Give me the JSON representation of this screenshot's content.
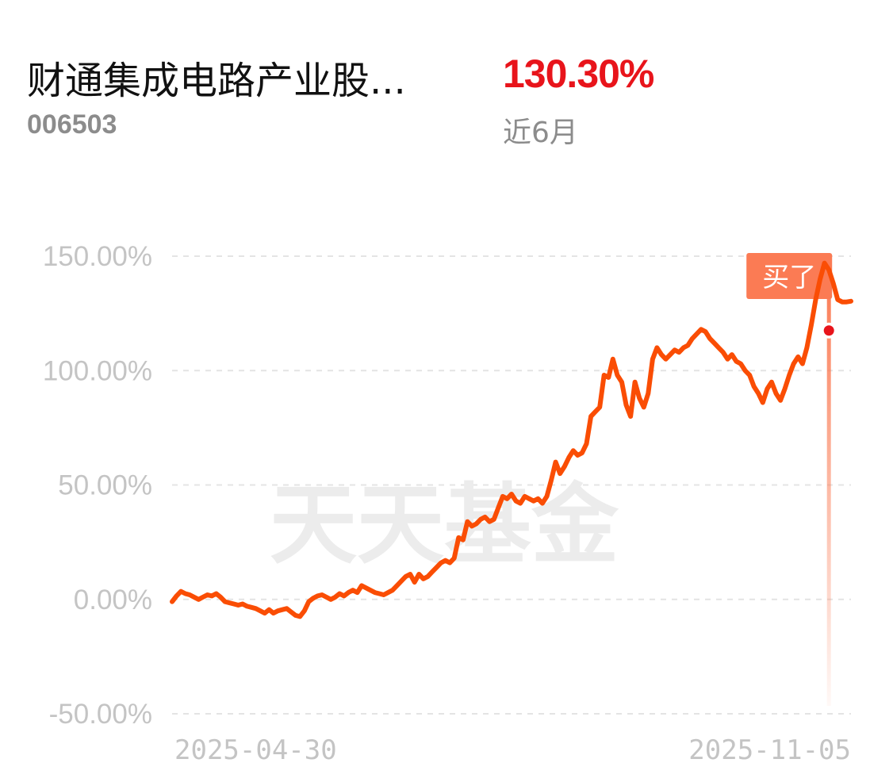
{
  "header": {
    "fund_name": "财通集成电路产业股...",
    "fund_code": "006503",
    "return_value": "130.30%",
    "return_period": "近6月"
  },
  "watermark": "天天基金",
  "buy_marker": {
    "label": "买了",
    "date_index": 149,
    "value": 117.5
  },
  "colors": {
    "line": "#fa4d04",
    "return": "#e8141b",
    "marker_box": "#fb7b54",
    "marker_dot": "#e8141b",
    "grid": "#e4e4e4"
  },
  "chart_data": {
    "type": "line",
    "title": "",
    "xlabel": "",
    "ylabel": "",
    "ylim": [
      -50,
      150
    ],
    "yticks": [
      "150.00%",
      "100.00%",
      "50.00%",
      "0.00%",
      "-50.00%"
    ],
    "ytick_values": [
      150,
      100,
      50,
      0,
      -50
    ],
    "x_labels": [
      "2025-04-30",
      "2025-11-05"
    ],
    "grid": true,
    "series": [
      {
        "values": [
          -1,
          1.5,
          3.5,
          2.5,
          2,
          1,
          0,
          1,
          2,
          1.5,
          2.5,
          1,
          -1,
          -1.5,
          -2,
          -2.5,
          -2,
          -3,
          -3.5,
          -4,
          -5,
          -6,
          -4.5,
          -6,
          -5,
          -4.5,
          -4,
          -5.5,
          -7,
          -7.5,
          -5,
          -1,
          0.5,
          1.5,
          2,
          1,
          0,
          1,
          2.5,
          1.5,
          3,
          4,
          3,
          6,
          5,
          4,
          3,
          2.5,
          2,
          3,
          4,
          6,
          8,
          10,
          11,
          7.5,
          11,
          9,
          10,
          12,
          14,
          16,
          17,
          16,
          18,
          27,
          26,
          34,
          32,
          33,
          35,
          36,
          34,
          35,
          40,
          45,
          44,
          46,
          43,
          42,
          45,
          44,
          43,
          44,
          42,
          45,
          52,
          60,
          55,
          58,
          62,
          65,
          63,
          64,
          68,
          80,
          82,
          84,
          98,
          97,
          105,
          98,
          95,
          85,
          80,
          95,
          88,
          84,
          90,
          105,
          110,
          107,
          105,
          107,
          109,
          108,
          110,
          111,
          114,
          116,
          118,
          117,
          114,
          112,
          110,
          108,
          105,
          107,
          104,
          103,
          100,
          98,
          93,
          90,
          86,
          92,
          95,
          90,
          87,
          92,
          98,
          103,
          106,
          103,
          110,
          120,
          131,
          140,
          147,
          144,
          138,
          131,
          130,
          130,
          130.3
        ]
      }
    ]
  }
}
